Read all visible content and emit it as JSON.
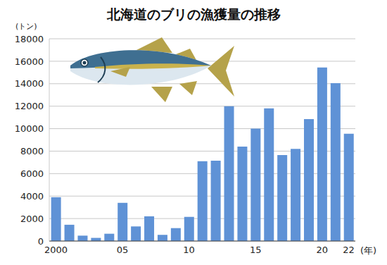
{
  "chart_data": {
    "type": "bar",
    "title": "北海道のブリの漁獲量の推移",
    "y_label": "(トン)",
    "x_label": "(年)",
    "categories": [
      "2000",
      null,
      null,
      null,
      null,
      "05",
      null,
      null,
      null,
      null,
      "10",
      null,
      null,
      null,
      null,
      "15",
      null,
      null,
      null,
      null,
      "20",
      null,
      "22"
    ],
    "values": [
      3900,
      1450,
      480,
      280,
      650,
      3400,
      1300,
      2200,
      550,
      1150,
      2150,
      7100,
      7150,
      12000,
      8400,
      10000,
      11800,
      7650,
      8200,
      10850,
      15450,
      14050,
      9550
    ],
    "color": "#5f92d6",
    "ylim": [
      0,
      18000
    ],
    "yticks": [
      0,
      2000,
      4000,
      6000,
      8000,
      10000,
      12000,
      14000,
      16000,
      18000
    ],
    "grid": true
  }
}
